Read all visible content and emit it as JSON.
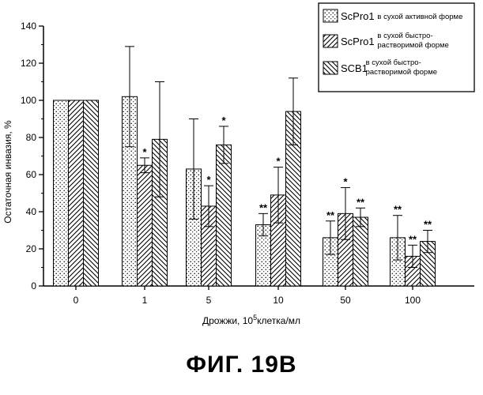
{
  "figure": {
    "caption": "ФИГ. 19В"
  },
  "chart_data": {
    "type": "bar",
    "title": "",
    "ylabel": "Остаточная инвазия, %",
    "xlabel_main": "Дрожжи, 10",
    "xlabel_sup": "5",
    "xlabel_rest": "клетка/мл",
    "ylim": [
      0,
      140
    ],
    "yticks": [
      0,
      20,
      40,
      60,
      80,
      100,
      120,
      140
    ],
    "categories": [
      "0",
      "1",
      "5",
      "10",
      "50",
      "100"
    ],
    "series": [
      {
        "name": "ScPro1",
        "desc": [
          "в сухой активной форме"
        ],
        "pattern": "dots",
        "values": [
          100,
          102,
          63,
          33,
          26,
          26
        ],
        "errors": [
          null,
          27,
          27,
          6,
          9,
          12
        ],
        "sig": [
          "",
          "",
          "",
          "**",
          "**",
          "**"
        ]
      },
      {
        "name": "ScPro1",
        "desc": [
          "в сухой быстро-",
          "растворимой форме"
        ],
        "pattern": "hatch-right",
        "values": [
          100,
          65,
          43,
          49,
          39,
          16
        ],
        "errors": [
          null,
          4,
          11,
          15,
          14,
          6
        ],
        "sig": [
          "",
          "*",
          "*",
          "*",
          "*",
          "**"
        ]
      },
      {
        "name": "SCB1",
        "desc": [
          "в сухой быстро-",
          "растворимой форме"
        ],
        "pattern": "hatch-left",
        "values": [
          100,
          79,
          76,
          94,
          37,
          24
        ],
        "errors": [
          null,
          31,
          10,
          18,
          5,
          6
        ],
        "sig": [
          "",
          "",
          "*",
          "",
          "**",
          "**"
        ]
      }
    ],
    "legend_position": "top-right",
    "grid": false
  }
}
